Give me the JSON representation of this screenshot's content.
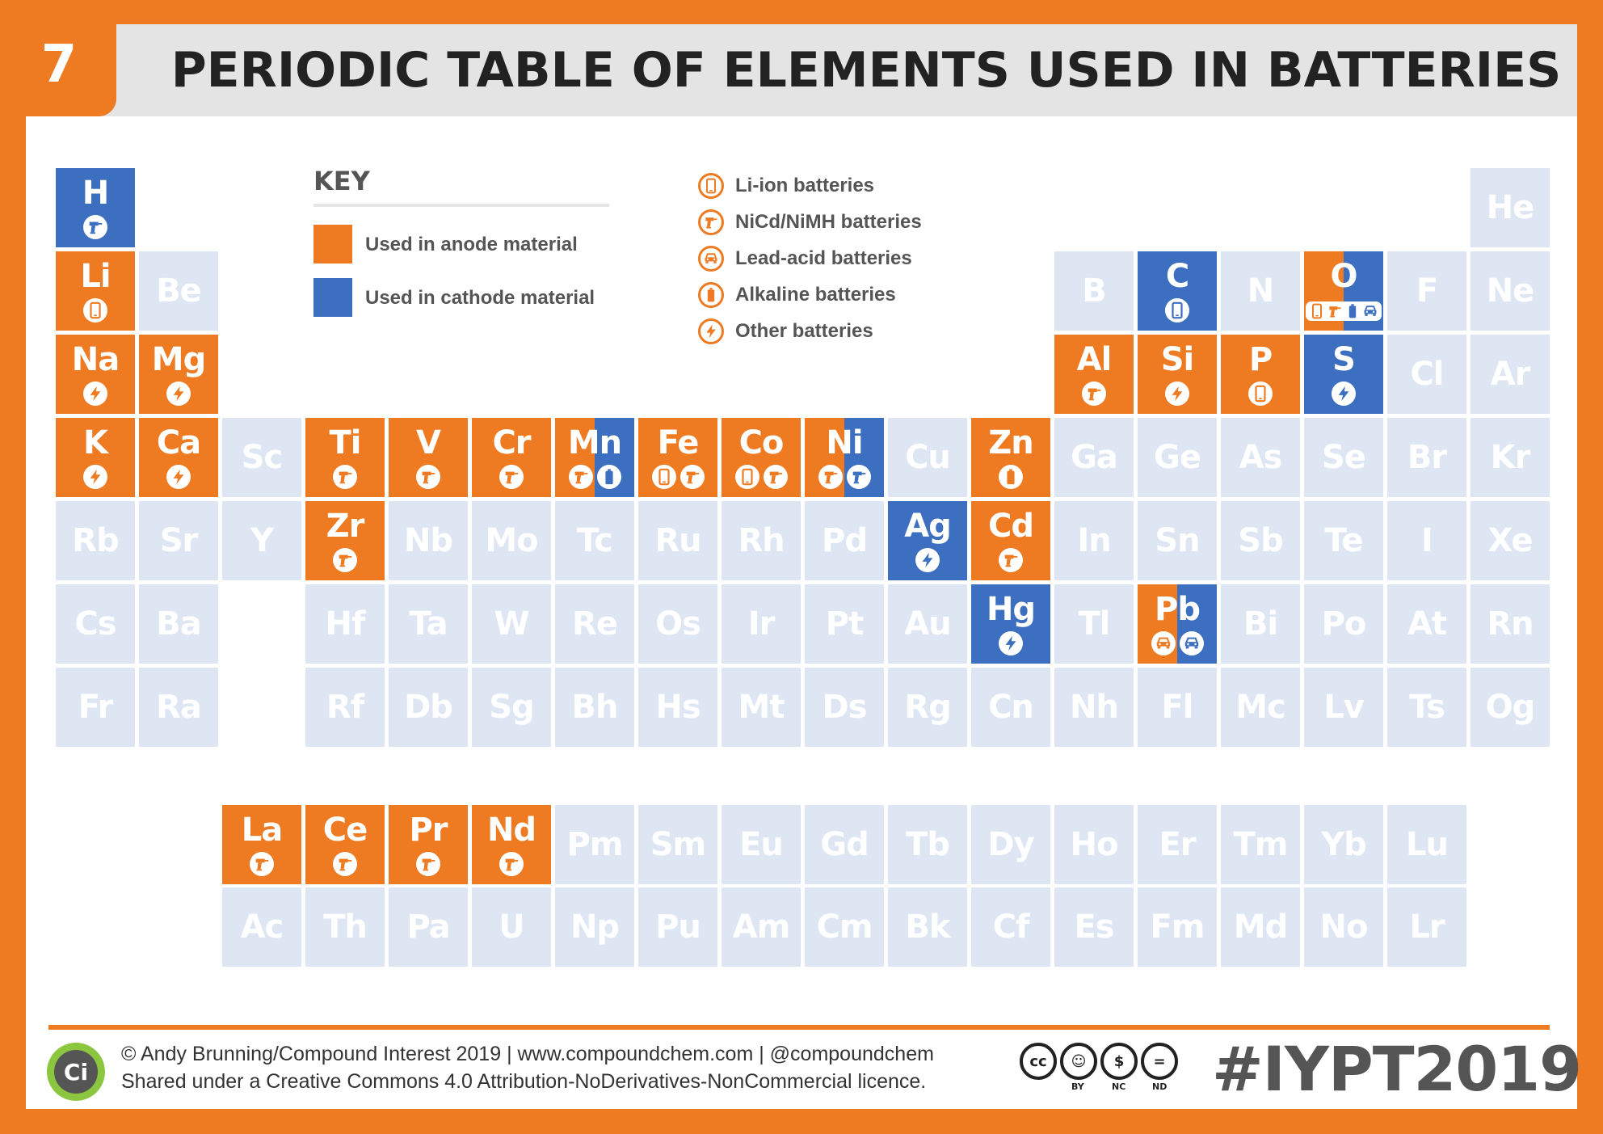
{
  "header": {
    "number": "7",
    "title": "PERIODIC TABLE OF ELEMENTS USED IN BATTERIES"
  },
  "colors": {
    "anode": "#ee7a22",
    "cathode": "#3c6fbf",
    "unused": "#dde6f2",
    "text_dark": "#555555",
    "accent": "#ee7a22"
  },
  "key": {
    "title": "KEY",
    "anode_label": "Used in anode material",
    "cathode_label": "Used in cathode material"
  },
  "legend": [
    {
      "icon": "phone-icon",
      "label": "Li-ion batteries"
    },
    {
      "icon": "drill-icon",
      "label": "NiCd/NiMH batteries"
    },
    {
      "icon": "car-icon",
      "label": "Lead-acid batteries"
    },
    {
      "icon": "battery-icon",
      "label": "Alkaline batteries"
    },
    {
      "icon": "bolt-icon",
      "label": "Other batteries"
    }
  ],
  "elements": [
    {
      "sym": "H",
      "row": 1,
      "col": 1,
      "role": "cathode",
      "icons": [
        "drill"
      ]
    },
    {
      "sym": "He",
      "row": 1,
      "col": 18,
      "role": "none",
      "icons": []
    },
    {
      "sym": "Li",
      "row": 2,
      "col": 1,
      "role": "anode",
      "icons": [
        "phone"
      ]
    },
    {
      "sym": "Be",
      "row": 2,
      "col": 2,
      "role": "none",
      "icons": []
    },
    {
      "sym": "B",
      "row": 2,
      "col": 13,
      "role": "none",
      "icons": []
    },
    {
      "sym": "C",
      "row": 2,
      "col": 14,
      "role": "cathode",
      "icons": [
        "phone"
      ]
    },
    {
      "sym": "N",
      "row": 2,
      "col": 15,
      "role": "none",
      "icons": []
    },
    {
      "sym": "O",
      "row": 2,
      "col": 16,
      "role": "split",
      "icons": [
        "phone",
        "drill",
        "battery",
        "car"
      ],
      "pill": true
    },
    {
      "sym": "F",
      "row": 2,
      "col": 17,
      "role": "none",
      "icons": []
    },
    {
      "sym": "Ne",
      "row": 2,
      "col": 18,
      "role": "none",
      "icons": []
    },
    {
      "sym": "Na",
      "row": 3,
      "col": 1,
      "role": "anode",
      "icons": [
        "bolt"
      ]
    },
    {
      "sym": "Mg",
      "row": 3,
      "col": 2,
      "role": "anode",
      "icons": [
        "bolt"
      ]
    },
    {
      "sym": "Al",
      "row": 3,
      "col": 13,
      "role": "anode",
      "icons": [
        "drill"
      ]
    },
    {
      "sym": "Si",
      "row": 3,
      "col": 14,
      "role": "anode",
      "icons": [
        "bolt"
      ]
    },
    {
      "sym": "P",
      "row": 3,
      "col": 15,
      "role": "anode",
      "icons": [
        "phone"
      ]
    },
    {
      "sym": "S",
      "row": 3,
      "col": 16,
      "role": "cathode",
      "icons": [
        "bolt"
      ]
    },
    {
      "sym": "Cl",
      "row": 3,
      "col": 17,
      "role": "none",
      "icons": []
    },
    {
      "sym": "Ar",
      "row": 3,
      "col": 18,
      "role": "none",
      "icons": []
    },
    {
      "sym": "K",
      "row": 4,
      "col": 1,
      "role": "anode",
      "icons": [
        "bolt"
      ]
    },
    {
      "sym": "Ca",
      "row": 4,
      "col": 2,
      "role": "anode",
      "icons": [
        "bolt"
      ]
    },
    {
      "sym": "Sc",
      "row": 4,
      "col": 3,
      "role": "none",
      "icons": []
    },
    {
      "sym": "Ti",
      "row": 4,
      "col": 4,
      "role": "anode",
      "icons": [
        "drill"
      ]
    },
    {
      "sym": "V",
      "row": 4,
      "col": 5,
      "role": "anode",
      "icons": [
        "drill"
      ]
    },
    {
      "sym": "Cr",
      "row": 4,
      "col": 6,
      "role": "anode",
      "icons": [
        "drill"
      ]
    },
    {
      "sym": "Mn",
      "row": 4,
      "col": 7,
      "role": "split",
      "icons": [
        "drill",
        "battery"
      ]
    },
    {
      "sym": "Fe",
      "row": 4,
      "col": 8,
      "role": "anode",
      "icons": [
        "phone",
        "drill"
      ]
    },
    {
      "sym": "Co",
      "row": 4,
      "col": 9,
      "role": "anode",
      "icons": [
        "phone",
        "drill"
      ]
    },
    {
      "sym": "Ni",
      "row": 4,
      "col": 10,
      "role": "split",
      "icons": [
        "drill",
        "drill"
      ]
    },
    {
      "sym": "Cu",
      "row": 4,
      "col": 11,
      "role": "none",
      "icons": []
    },
    {
      "sym": "Zn",
      "row": 4,
      "col": 12,
      "role": "anode",
      "icons": [
        "battery"
      ]
    },
    {
      "sym": "Ga",
      "row": 4,
      "col": 13,
      "role": "none",
      "icons": []
    },
    {
      "sym": "Ge",
      "row": 4,
      "col": 14,
      "role": "none",
      "icons": []
    },
    {
      "sym": "As",
      "row": 4,
      "col": 15,
      "role": "none",
      "icons": []
    },
    {
      "sym": "Se",
      "row": 4,
      "col": 16,
      "role": "none",
      "icons": []
    },
    {
      "sym": "Br",
      "row": 4,
      "col": 17,
      "role": "none",
      "icons": []
    },
    {
      "sym": "Kr",
      "row": 4,
      "col": 18,
      "role": "none",
      "icons": []
    },
    {
      "sym": "Rb",
      "row": 5,
      "col": 1,
      "role": "none",
      "icons": []
    },
    {
      "sym": "Sr",
      "row": 5,
      "col": 2,
      "role": "none",
      "icons": []
    },
    {
      "sym": "Y",
      "row": 5,
      "col": 3,
      "role": "none",
      "icons": []
    },
    {
      "sym": "Zr",
      "row": 5,
      "col": 4,
      "role": "anode",
      "icons": [
        "drill"
      ]
    },
    {
      "sym": "Nb",
      "row": 5,
      "col": 5,
      "role": "none",
      "icons": []
    },
    {
      "sym": "Mo",
      "row": 5,
      "col": 6,
      "role": "none",
      "icons": []
    },
    {
      "sym": "Tc",
      "row": 5,
      "col": 7,
      "role": "none",
      "icons": []
    },
    {
      "sym": "Ru",
      "row": 5,
      "col": 8,
      "role": "none",
      "icons": []
    },
    {
      "sym": "Rh",
      "row": 5,
      "col": 9,
      "role": "none",
      "icons": []
    },
    {
      "sym": "Pd",
      "row": 5,
      "col": 10,
      "role": "none",
      "icons": []
    },
    {
      "sym": "Ag",
      "row": 5,
      "col": 11,
      "role": "cathode",
      "icons": [
        "bolt"
      ]
    },
    {
      "sym": "Cd",
      "row": 5,
      "col": 12,
      "role": "anode",
      "icons": [
        "drill"
      ]
    },
    {
      "sym": "In",
      "row": 5,
      "col": 13,
      "role": "none",
      "icons": []
    },
    {
      "sym": "Sn",
      "row": 5,
      "col": 14,
      "role": "none",
      "icons": []
    },
    {
      "sym": "Sb",
      "row": 5,
      "col": 15,
      "role": "none",
      "icons": []
    },
    {
      "sym": "Te",
      "row": 5,
      "col": 16,
      "role": "none",
      "icons": []
    },
    {
      "sym": "I",
      "row": 5,
      "col": 17,
      "role": "none",
      "icons": []
    },
    {
      "sym": "Xe",
      "row": 5,
      "col": 18,
      "role": "none",
      "icons": []
    },
    {
      "sym": "Cs",
      "row": 6,
      "col": 1,
      "role": "none",
      "icons": []
    },
    {
      "sym": "Ba",
      "row": 6,
      "col": 2,
      "role": "none",
      "icons": []
    },
    {
      "sym": "Hf",
      "row": 6,
      "col": 4,
      "role": "none",
      "icons": []
    },
    {
      "sym": "Ta",
      "row": 6,
      "col": 5,
      "role": "none",
      "icons": []
    },
    {
      "sym": "W",
      "row": 6,
      "col": 6,
      "role": "none",
      "icons": []
    },
    {
      "sym": "Re",
      "row": 6,
      "col": 7,
      "role": "none",
      "icons": []
    },
    {
      "sym": "Os",
      "row": 6,
      "col": 8,
      "role": "none",
      "icons": []
    },
    {
      "sym": "Ir",
      "row": 6,
      "col": 9,
      "role": "none",
      "icons": []
    },
    {
      "sym": "Pt",
      "row": 6,
      "col": 10,
      "role": "none",
      "icons": []
    },
    {
      "sym": "Au",
      "row": 6,
      "col": 11,
      "role": "none",
      "icons": []
    },
    {
      "sym": "Hg",
      "row": 6,
      "col": 12,
      "role": "cathode",
      "icons": [
        "bolt"
      ]
    },
    {
      "sym": "Tl",
      "row": 6,
      "col": 13,
      "role": "none",
      "icons": []
    },
    {
      "sym": "Pb",
      "row": 6,
      "col": 14,
      "role": "split",
      "icons": [
        "car",
        "car"
      ]
    },
    {
      "sym": "Bi",
      "row": 6,
      "col": 15,
      "role": "none",
      "icons": []
    },
    {
      "sym": "Po",
      "row": 6,
      "col": 16,
      "role": "none",
      "icons": []
    },
    {
      "sym": "At",
      "row": 6,
      "col": 17,
      "role": "none",
      "icons": []
    },
    {
      "sym": "Rn",
      "row": 6,
      "col": 18,
      "role": "none",
      "icons": []
    },
    {
      "sym": "Fr",
      "row": 7,
      "col": 1,
      "role": "none",
      "icons": []
    },
    {
      "sym": "Ra",
      "row": 7,
      "col": 2,
      "role": "none",
      "icons": []
    },
    {
      "sym": "Rf",
      "row": 7,
      "col": 4,
      "role": "none",
      "icons": []
    },
    {
      "sym": "Db",
      "row": 7,
      "col": 5,
      "role": "none",
      "icons": []
    },
    {
      "sym": "Sg",
      "row": 7,
      "col": 6,
      "role": "none",
      "icons": []
    },
    {
      "sym": "Bh",
      "row": 7,
      "col": 7,
      "role": "none",
      "icons": []
    },
    {
      "sym": "Hs",
      "row": 7,
      "col": 8,
      "role": "none",
      "icons": []
    },
    {
      "sym": "Mt",
      "row": 7,
      "col": 9,
      "role": "none",
      "icons": []
    },
    {
      "sym": "Ds",
      "row": 7,
      "col": 10,
      "role": "none",
      "icons": []
    },
    {
      "sym": "Rg",
      "row": 7,
      "col": 11,
      "role": "none",
      "icons": []
    },
    {
      "sym": "Cn",
      "row": 7,
      "col": 12,
      "role": "none",
      "icons": []
    },
    {
      "sym": "Nh",
      "row": 7,
      "col": 13,
      "role": "none",
      "icons": []
    },
    {
      "sym": "Fl",
      "row": 7,
      "col": 14,
      "role": "none",
      "icons": []
    },
    {
      "sym": "Mc",
      "row": 7,
      "col": 15,
      "role": "none",
      "icons": []
    },
    {
      "sym": "Lv",
      "row": 7,
      "col": 16,
      "role": "none",
      "icons": []
    },
    {
      "sym": "Ts",
      "row": 7,
      "col": 17,
      "role": "none",
      "icons": []
    },
    {
      "sym": "Og",
      "row": 7,
      "col": 18,
      "role": "none",
      "icons": []
    },
    {
      "sym": "La",
      "row": 9,
      "col": 3,
      "role": "anode",
      "icons": [
        "drill"
      ]
    },
    {
      "sym": "Ce",
      "row": 9,
      "col": 4,
      "role": "anode",
      "icons": [
        "drill"
      ]
    },
    {
      "sym": "Pr",
      "row": 9,
      "col": 5,
      "role": "anode",
      "icons": [
        "drill"
      ]
    },
    {
      "sym": "Nd",
      "row": 9,
      "col": 6,
      "role": "anode",
      "icons": [
        "drill"
      ]
    },
    {
      "sym": "Pm",
      "row": 9,
      "col": 7,
      "role": "none",
      "icons": []
    },
    {
      "sym": "Sm",
      "row": 9,
      "col": 8,
      "role": "none",
      "icons": []
    },
    {
      "sym": "Eu",
      "row": 9,
      "col": 9,
      "role": "none",
      "icons": []
    },
    {
      "sym": "Gd",
      "row": 9,
      "col": 10,
      "role": "none",
      "icons": []
    },
    {
      "sym": "Tb",
      "row": 9,
      "col": 11,
      "role": "none",
      "icons": []
    },
    {
      "sym": "Dy",
      "row": 9,
      "col": 12,
      "role": "none",
      "icons": []
    },
    {
      "sym": "Ho",
      "row": 9,
      "col": 13,
      "role": "none",
      "icons": []
    },
    {
      "sym": "Er",
      "row": 9,
      "col": 14,
      "role": "none",
      "icons": []
    },
    {
      "sym": "Tm",
      "row": 9,
      "col": 15,
      "role": "none",
      "icons": []
    },
    {
      "sym": "Yb",
      "row": 9,
      "col": 16,
      "role": "none",
      "icons": []
    },
    {
      "sym": "Lu",
      "row": 9,
      "col": 17,
      "role": "none",
      "icons": []
    },
    {
      "sym": "Ac",
      "row": 10,
      "col": 3,
      "role": "none",
      "icons": []
    },
    {
      "sym": "Th",
      "row": 10,
      "col": 4,
      "role": "none",
      "icons": []
    },
    {
      "sym": "Pa",
      "row": 10,
      "col": 5,
      "role": "none",
      "icons": []
    },
    {
      "sym": "U",
      "row": 10,
      "col": 6,
      "role": "none",
      "icons": []
    },
    {
      "sym": "Np",
      "row": 10,
      "col": 7,
      "role": "none",
      "icons": []
    },
    {
      "sym": "Pu",
      "row": 10,
      "col": 8,
      "role": "none",
      "icons": []
    },
    {
      "sym": "Am",
      "row": 10,
      "col": 9,
      "role": "none",
      "icons": []
    },
    {
      "sym": "Cm",
      "row": 10,
      "col": 10,
      "role": "none",
      "icons": []
    },
    {
      "sym": "Bk",
      "row": 10,
      "col": 11,
      "role": "none",
      "icons": []
    },
    {
      "sym": "Cf",
      "row": 10,
      "col": 12,
      "role": "none",
      "icons": []
    },
    {
      "sym": "Es",
      "row": 10,
      "col": 13,
      "role": "none",
      "icons": []
    },
    {
      "sym": "Fm",
      "row": 10,
      "col": 14,
      "role": "none",
      "icons": []
    },
    {
      "sym": "Md",
      "row": 10,
      "col": 15,
      "role": "none",
      "icons": []
    },
    {
      "sym": "No",
      "row": 10,
      "col": 16,
      "role": "none",
      "icons": []
    },
    {
      "sym": "Lr",
      "row": 10,
      "col": 17,
      "role": "none",
      "icons": []
    }
  ],
  "footer": {
    "logo_text": "Ci",
    "credit_line1": "© Andy Brunning/Compound Interest 2019 | www.compoundchem.com | @compoundchem",
    "credit_line2": "Shared under a Creative Commons 4.0 Attribution-NoDerivatives-NonCommercial licence.",
    "cc_badges": [
      {
        "glyph": "cc",
        "caption": ""
      },
      {
        "glyph": "☺",
        "caption": "BY"
      },
      {
        "glyph": "$",
        "caption": "NC"
      },
      {
        "glyph": "=",
        "caption": "ND"
      }
    ],
    "hashtag": "#IYPT2019"
  }
}
